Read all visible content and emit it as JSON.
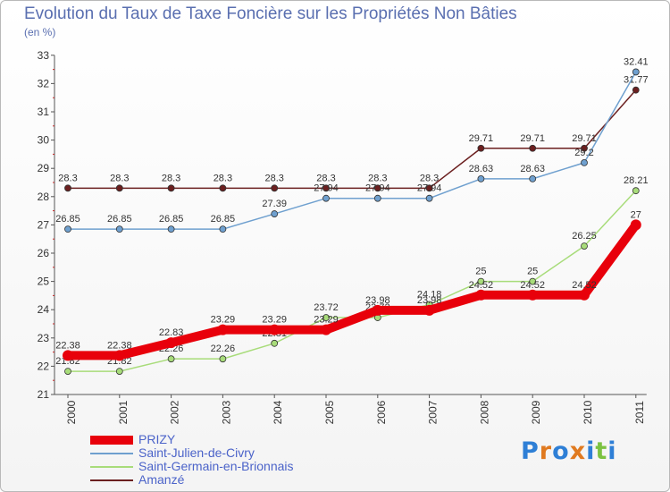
{
  "title": "Evolution du Taux de Taxe Foncière sur les Propriétés Non Bâties",
  "unit_label": "(en %)",
  "logo": {
    "letters": [
      "P",
      "r",
      "o",
      "x",
      "i",
      "t",
      "i"
    ],
    "colors": [
      "#2e7fd6",
      "#e07a20",
      "#2e7fd6",
      "#e07a20",
      "#2e7fd6",
      "#7cc242",
      "#2e7fd6"
    ]
  },
  "chart_data": {
    "type": "line",
    "x": [
      "2000",
      "2001",
      "2002",
      "2003",
      "2004",
      "2005",
      "2006",
      "2007",
      "2008",
      "2009",
      "2010",
      "2011"
    ],
    "ylim": [
      21,
      33
    ],
    "yticks": [
      21,
      22,
      23,
      24,
      25,
      26,
      27,
      28,
      29,
      30,
      31,
      32,
      33
    ],
    "grid": false,
    "legend_position": "bottom-left",
    "series": [
      {
        "name": "Amanzé",
        "color": "#6b1f1f",
        "style": "thin",
        "values": [
          28.3,
          28.3,
          28.3,
          28.3,
          28.3,
          28.3,
          28.3,
          28.3,
          29.71,
          29.71,
          29.71,
          31.77
        ],
        "labels": [
          "28.3",
          "28.3",
          "28.3",
          "28.3",
          "28.3",
          "28.3",
          "28.3",
          "28.3",
          "29.71",
          "29.71",
          "29.71",
          "31.77"
        ]
      },
      {
        "name": "Saint-Julien-de-Civry",
        "color": "#6fa0cf",
        "style": "thin",
        "values": [
          26.85,
          26.85,
          26.85,
          26.85,
          27.39,
          27.94,
          27.94,
          27.94,
          28.63,
          28.63,
          29.2,
          32.41
        ],
        "labels": [
          "26.85",
          "26.85",
          "26.85",
          "26.85",
          "27.39",
          "27.94",
          "27.94",
          "27.94",
          "28.63",
          "28.63",
          "29.2",
          "32.41"
        ]
      },
      {
        "name": "Saint-Germain-en-Brionnais",
        "color": "#a8dc7a",
        "style": "thin",
        "values": [
          21.82,
          21.82,
          22.26,
          22.26,
          22.81,
          23.72,
          23.72,
          24.18,
          25,
          25,
          26.25,
          28.21
        ],
        "labels": [
          "21.82",
          "21.82",
          "22.26",
          "22.26",
          "22.81",
          "23.72",
          "23.72",
          "24.18",
          "25",
          "25",
          "26.25",
          "28.21"
        ]
      },
      {
        "name": "PRIZY",
        "color": "#e8000b",
        "style": "thick",
        "values": [
          22.38,
          22.38,
          22.83,
          23.29,
          23.29,
          23.29,
          23.98,
          23.98,
          24.52,
          24.52,
          24.52,
          27
        ],
        "labels": [
          "22.38",
          "22.38",
          "22.83",
          "23.29",
          "23.29",
          "23.29",
          "23.98",
          "23.98",
          "24.52",
          "24.52",
          "24.52",
          "27"
        ]
      }
    ]
  }
}
